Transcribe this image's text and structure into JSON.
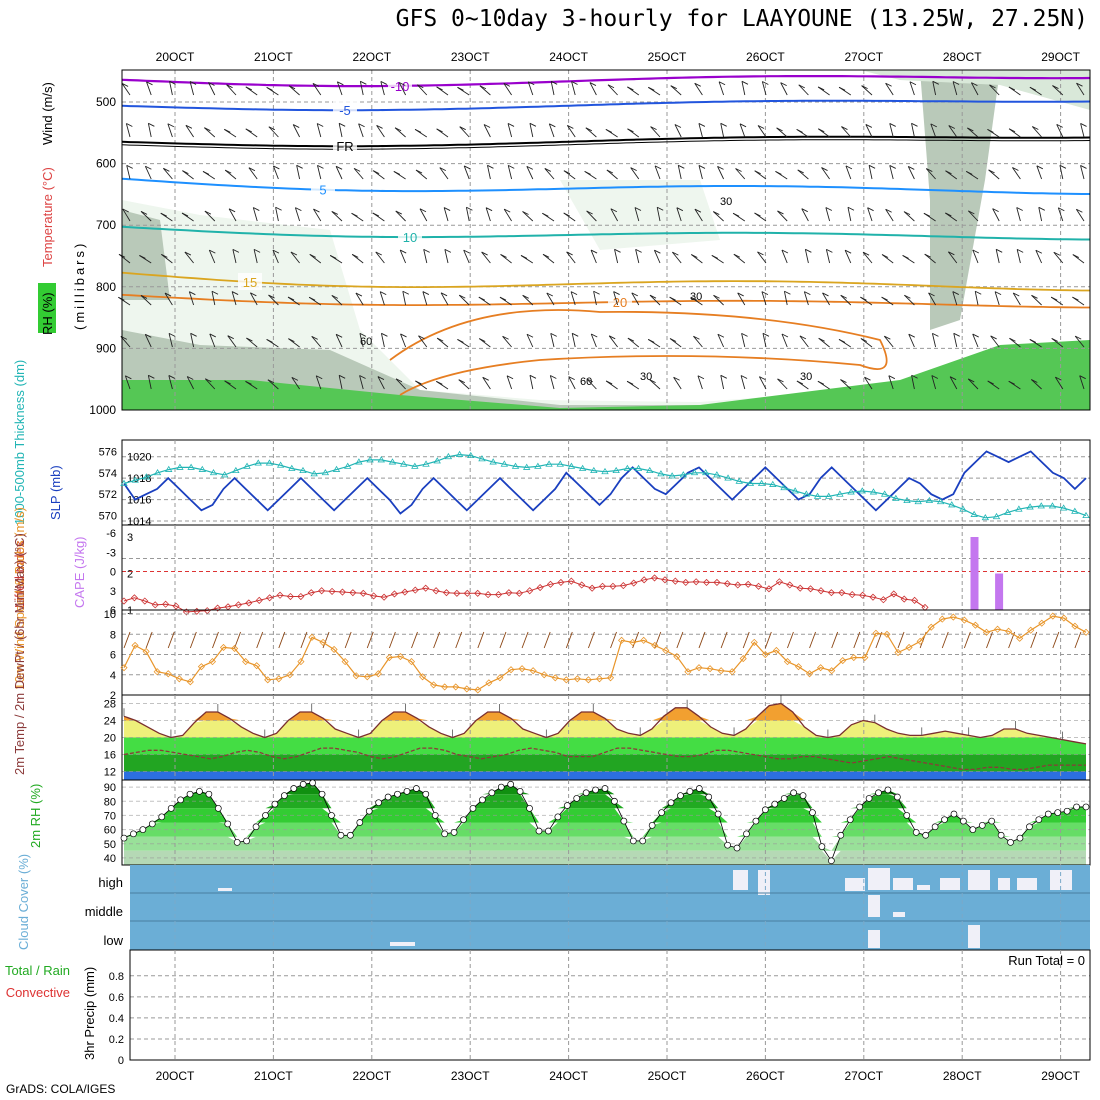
{
  "title": "GFS 0~10day 3-hourly for LAAYOUNE (13.25W, 27.25N)",
  "credit": "GrADS: COLA/IGES",
  "dates": [
    "20OCT",
    "21OCT",
    "22OCT",
    "23OCT",
    "24OCT",
    "25OCT",
    "26OCT",
    "27OCT",
    "28OCT",
    "29OCT"
  ],
  "colors": {
    "grid": "#999999",
    "rh_dark": "#b9c9b9",
    "rh_mid": "#d9e8d9",
    "rh_light": "#eef6ee",
    "green": "#33cc33",
    "bright_green": "#00ee00",
    "cloud": "#6baed6",
    "cloud_light": "#f0f0f8"
  },
  "chart_data": [
    {
      "type": "contour",
      "name": "upper-air",
      "ylabel_parts": [
        "RH (%)",
        "Temperature (°C)",
        "Wind (m/s)"
      ],
      "yunit": "(millibars)",
      "yticks": [
        500,
        600,
        700,
        800,
        900,
        1000
      ],
      "contour_labels": [
        {
          "text": "-10",
          "color": "#9900cc"
        },
        {
          "text": "-5",
          "color": "#2255dd"
        },
        {
          "text": "FR",
          "color": "#000000"
        },
        {
          "text": "5",
          "color": "#1e90ff"
        },
        {
          "text": "10",
          "color": "#20b2aa"
        },
        {
          "text": "15",
          "color": "#daa520"
        },
        {
          "text": "20",
          "color": "#e67e22"
        }
      ],
      "rh_labels": [
        "30",
        "30",
        "60",
        "60",
        "30",
        "30"
      ]
    },
    {
      "type": "line",
      "name": "thickness-slp",
      "ylabel_left": "1000-500mb Thickness (dm)",
      "ylabel_right": "SLP (mb)",
      "left_ticks": [
        570,
        572,
        574,
        576
      ],
      "right_ticks": [
        1014,
        1016,
        1018,
        1020
      ],
      "series": [
        {
          "name": "SLP (mb)",
          "axis": "right",
          "color": "#1a3fbf",
          "values": [
            1017.5,
            1016.0,
            1016.5,
            1017.0,
            1018.0,
            1017.0,
            1016.0,
            1015.0,
            1015.5,
            1017.0,
            1018.0,
            1017.0,
            1016.0,
            1015.0,
            1016.0,
            1017.0,
            1018.0,
            1017.0,
            1016.0,
            1015.0,
            1016.0,
            1017.0,
            1018.0,
            1017.0,
            1016.0,
            1014.7,
            1015.5,
            1017.0,
            1018.0,
            1017.0,
            1016.0,
            1015.0,
            1016.0,
            1017.0,
            1018.0,
            1017.0,
            1016.0,
            1015.0,
            1016.0,
            1017.0,
            1018.5,
            1017.5,
            1016.5,
            1015.5,
            1016.5,
            1018.0,
            1019.0,
            1018.0,
            1017.0,
            1016.5,
            1017.5,
            1018.5,
            1019.0,
            1018.0,
            1017.0,
            1016.0,
            1017.0,
            1018.0,
            1019.0,
            1018.0,
            1017.0,
            1016.0,
            1016.5,
            1018.0,
            1019.0,
            1018.0,
            1017.0,
            1016.0,
            1015.0,
            1016.0,
            1017.0,
            1018.0,
            1017.5,
            1016.5,
            1016.0,
            1016.5,
            1018.5,
            1019.5,
            1020.5,
            1020.0,
            1019.5,
            1020.0,
            1020.5,
            1019.5,
            1018.5,
            1018.0,
            1017.0,
            1018.0
          ]
        },
        {
          "name": "1000-500mb Thickness (dm)",
          "axis": "left",
          "color": "#22b5b5",
          "values": [
            573.0,
            573.3,
            573.6,
            574.0,
            574.3,
            574.5,
            574.5,
            574.3,
            574.0,
            573.8,
            574.2,
            574.6,
            574.9,
            574.9,
            574.7,
            574.4,
            574.2,
            573.9,
            574.0,
            574.3,
            574.6,
            575.0,
            575.2,
            575.2,
            575.0,
            574.8,
            574.6,
            574.8,
            575.1,
            575.5,
            575.7,
            575.6,
            575.3,
            575.0,
            574.8,
            574.6,
            574.5,
            574.6,
            574.8,
            574.8,
            574.6,
            574.4,
            574.2,
            574.1,
            574.2,
            574.4,
            574.4,
            574.2,
            573.9,
            573.7,
            573.8,
            574.0,
            574.0,
            573.8,
            573.5,
            573.2,
            573.0,
            573.0,
            572.9,
            572.6,
            572.3,
            572.0,
            571.8,
            571.8,
            572.0,
            572.2,
            572.3,
            572.2,
            572.0,
            571.6,
            571.4,
            571.3,
            571.4,
            571.3,
            571.0,
            570.6,
            570.1,
            569.8,
            569.9,
            570.3,
            570.6,
            570.8,
            570.9,
            570.9,
            570.7,
            570.4,
            570.0
          ]
        }
      ]
    },
    {
      "type": "line",
      "name": "lifted-cape",
      "ylabel_left": "Lifted Index",
      "ylabel_right": "CAPE (J/kg)",
      "left_ticks": [
        "-6",
        "-3",
        "0",
        "3",
        "6"
      ],
      "right_ticks": [
        "1",
        "2",
        "3"
      ],
      "series": [
        {
          "name": "Lifted Index",
          "axis": "left",
          "color": "#cc3333",
          "values": [
            4.6,
            4.1,
            4.6,
            5.2,
            5.1,
            5.4,
            6.3,
            6.2,
            6.1,
            5.7,
            5.5,
            5.2,
            4.9,
            4.5,
            4.1,
            3.7,
            3.9,
            3.9,
            3.3,
            3.0,
            3.1,
            3.2,
            3.3,
            3.4,
            3.8,
            4.0,
            3.5,
            3.2,
            2.9,
            2.6,
            3.0,
            3.3,
            3.4,
            3.4,
            3.4,
            3.6,
            3.6,
            3.3,
            3.4,
            3.0,
            2.5,
            2.0,
            1.7,
            1.5,
            2.1,
            2.6,
            2.3,
            2.3,
            2.2,
            1.8,
            1.3,
            1.0,
            1.3,
            1.5,
            1.7,
            1.6,
            1.7,
            1.7,
            1.9,
            2.1,
            2.0,
            2.3,
            2.7,
            1.6,
            2.1,
            2.6,
            2.7,
            3.0,
            3.3,
            3.3,
            3.6,
            3.7,
            4.0,
            4.4,
            3.5,
            4.3,
            4.5,
            5.6
          ]
        },
        {
          "name": "CAPE (J/kg)",
          "axis": "right",
          "color": "#c477ef",
          "type": "bar",
          "values": [
            {
              "date": "28OCT",
              "hour": 3,
              "value": 3.0
            },
            {
              "date": "28OCT",
              "hour": 9,
              "value": 2.0
            }
          ]
        }
      ],
      "reference_line": {
        "axis": "left",
        "value": 0,
        "color": "#dd3333"
      }
    },
    {
      "type": "line",
      "name": "wind10m",
      "ylabel": "10m Wind Speed & Barbs (m/s)",
      "yticks": [
        2,
        4,
        6,
        8,
        10
      ],
      "series": [
        {
          "name": "10m Wind Speed",
          "color": "#e8952a",
          "values": [
            4.7,
            6.9,
            6.3,
            4.3,
            4.1,
            3.6,
            3.3,
            4.8,
            5.3,
            6.7,
            6.6,
            5.3,
            4.9,
            3.5,
            3.6,
            4.0,
            5.3,
            7.7,
            7.2,
            6.5,
            5.3,
            3.9,
            3.8,
            4.1,
            5.7,
            5.8,
            5.3,
            3.8,
            3.0,
            2.8,
            2.8,
            2.6,
            2.5,
            3.2,
            3.7,
            4.5,
            4.6,
            4.4,
            4.0,
            3.7,
            3.5,
            3.6,
            3.5,
            3.6,
            3.7,
            7.4,
            7.2,
            7.4,
            6.9,
            6.4,
            5.8,
            4.3,
            4.7,
            4.6,
            4.4,
            4.3,
            5.6,
            7.2,
            6.0,
            6.4,
            5.3,
            4.8,
            4.1,
            4.7,
            4.4,
            5.4,
            5.7,
            5.7,
            8.1,
            8.0,
            6.2,
            6.7,
            7.3,
            8.7,
            9.5,
            9.7,
            9.4,
            8.9,
            8.2,
            8.5,
            8.3,
            7.6,
            8.4,
            9.1,
            9.8,
            9.6,
            8.8,
            8.2
          ]
        }
      ]
    },
    {
      "type": "area",
      "name": "temp2m",
      "ylabel": "2m Temp / 2m DewPt / (6hr Min/Max) (°C)",
      "yticks": [
        12,
        16,
        20,
        24,
        28
      ],
      "series": [
        {
          "name": "2m Temp",
          "color": "#7a2f2f",
          "values": [
            25.0,
            24.0,
            22.5,
            21.0,
            20.0,
            20.5,
            23.5,
            26.0,
            26.0,
            24.5,
            22.5,
            21.0,
            20.0,
            21.0,
            24.0,
            26.0,
            26.0,
            24.5,
            22.0,
            21.0,
            20.0,
            21.0,
            24.0,
            26.0,
            26.0,
            24.5,
            22.5,
            21.0,
            20.0,
            21.0,
            24.0,
            26.0,
            26.0,
            24.5,
            22.0,
            21.0,
            20.0,
            21.0,
            24.0,
            26.0,
            26.0,
            24.5,
            22.0,
            21.0,
            20.5,
            22.0,
            25.0,
            27.0,
            27.0,
            25.0,
            22.5,
            21.0,
            20.5,
            22.0,
            25.0,
            27.5,
            28.0,
            26.0,
            22.5,
            20.5,
            20.0,
            20.5,
            23.0,
            24.0,
            23.5,
            22.0,
            21.0,
            20.5,
            20.5,
            21.0,
            21.5,
            21.0,
            20.5,
            20.0,
            20.5,
            22.0,
            22.0,
            21.0,
            20.5,
            20.0,
            19.5,
            19.0,
            18.5
          ]
        },
        {
          "name": "2m DewPt",
          "color": "#8b3a3a",
          "dash": true,
          "values": [
            16.0,
            16.5,
            17.0,
            17.0,
            16.5,
            16.0,
            15.5,
            15.0,
            15.5,
            16.5,
            17.0,
            16.5,
            15.5,
            15.0,
            15.5,
            16.5,
            17.5,
            17.5,
            17.0,
            16.5,
            15.5,
            15.0,
            15.5,
            16.5,
            17.5,
            17.5,
            17.0,
            16.0,
            15.5,
            15.0,
            15.5,
            16.0,
            17.0,
            17.5,
            17.0,
            16.5,
            15.5,
            15.5,
            15.5,
            16.5,
            17.5,
            17.5,
            17.0,
            16.5,
            16.0,
            15.5,
            15.5,
            16.0,
            17.0,
            17.0,
            16.5,
            16.0,
            15.5,
            15.0,
            15.0,
            15.5,
            15.5,
            15.0,
            14.5,
            14.0,
            14.5,
            15.0,
            15.5,
            15.0,
            14.5,
            14.0,
            13.5,
            13.0,
            12.5,
            12.5,
            13.0,
            13.0,
            12.5,
            12.5,
            13.0,
            13.5,
            13.5,
            13.5,
            13.5
          ]
        }
      ],
      "fill_colors": [
        "#2c6fe0",
        "#22a522",
        "#44dd44",
        "#eef07a",
        "#f2a030"
      ]
    },
    {
      "type": "area",
      "name": "rh2m",
      "ylabel": "2m RH (%)",
      "yticks": [
        40,
        50,
        60,
        70,
        80,
        90
      ],
      "series": [
        {
          "name": "2m RH",
          "color": "#000000",
          "values": [
            54,
            57,
            60,
            64,
            69,
            75,
            81,
            85,
            87,
            85,
            75,
            64,
            51,
            52,
            62,
            70,
            78,
            84,
            89,
            92,
            93,
            85,
            70,
            56,
            56,
            65,
            73,
            79,
            83,
            85,
            87,
            89,
            85,
            70,
            57,
            58,
            67,
            75,
            81,
            86,
            90,
            92,
            87,
            75,
            59,
            59,
            69,
            77,
            82,
            86,
            88,
            89,
            80,
            66,
            52,
            52,
            63,
            72,
            79,
            84,
            87,
            89,
            83,
            71,
            49,
            47,
            57,
            66,
            74,
            78,
            82,
            86,
            84,
            72,
            48,
            38,
            56,
            67,
            76,
            82,
            86,
            88,
            83,
            70,
            58,
            56,
            62,
            67,
            71,
            66,
            60,
            63,
            66,
            56,
            51,
            54,
            62,
            67,
            71,
            72,
            73,
            76,
            76
          ]
        }
      ],
      "fill_colors": [
        "#b5d9b5",
        "#99e099",
        "#66dd66",
        "#33cc33",
        "#22aa22",
        "#109010"
      ]
    },
    {
      "type": "heatmap",
      "name": "cloud-cover",
      "ylabel": "Cloud Cover (%)",
      "rows": [
        "high",
        "middle",
        "low"
      ]
    },
    {
      "type": "bar",
      "name": "precip",
      "ylabel": "3hr Precip (mm)",
      "legend_left": [
        "Total / Rain",
        "Convective"
      ],
      "yticks": [
        "0",
        "0.2",
        "0.4",
        "0.6",
        "0.8"
      ],
      "annotation": "Run Total = 0",
      "values": []
    }
  ]
}
